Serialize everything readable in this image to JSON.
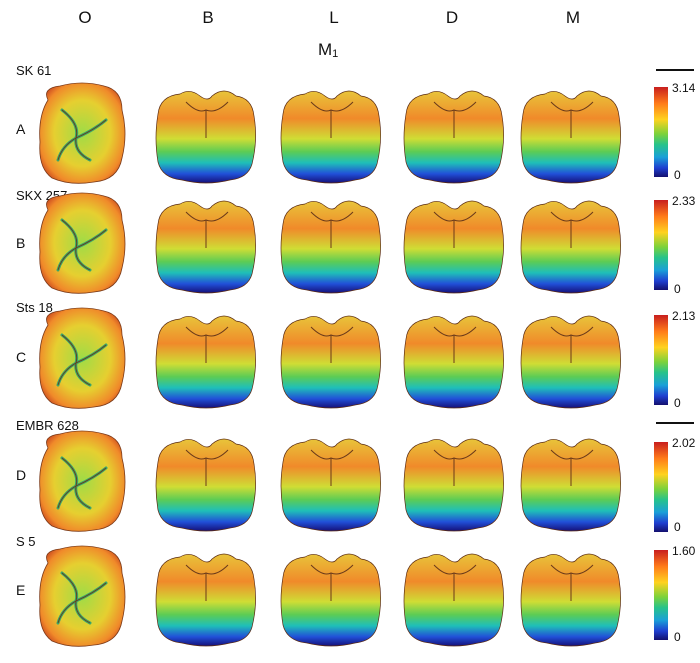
{
  "columns": [
    "O",
    "B",
    "L",
    "D",
    "M"
  ],
  "title": {
    "main": "M",
    "sub": "1"
  },
  "rows": [
    {
      "specimen": "SK 61",
      "letter": "A",
      "scale_max": "3.14",
      "scale_min": "0"
    },
    {
      "specimen": "SKX 257",
      "letter": "B",
      "scale_max": "2.33",
      "scale_min": "0"
    },
    {
      "specimen": "Sts 18",
      "letter": "C",
      "scale_max": "2.13",
      "scale_min": "0"
    },
    {
      "specimen": "EMBR 628",
      "letter": "D",
      "scale_max": "2.02",
      "scale_min": "0"
    },
    {
      "specimen": "S 5",
      "letter": "E",
      "scale_max": "1.60",
      "scale_min": "0"
    }
  ],
  "colormap": [
    "#14106e",
    "#1f3fd0",
    "#1aa0d8",
    "#27c38a",
    "#7dd23a",
    "#ffd21f",
    "#ff7a1a",
    "#c81e1e"
  ]
}
